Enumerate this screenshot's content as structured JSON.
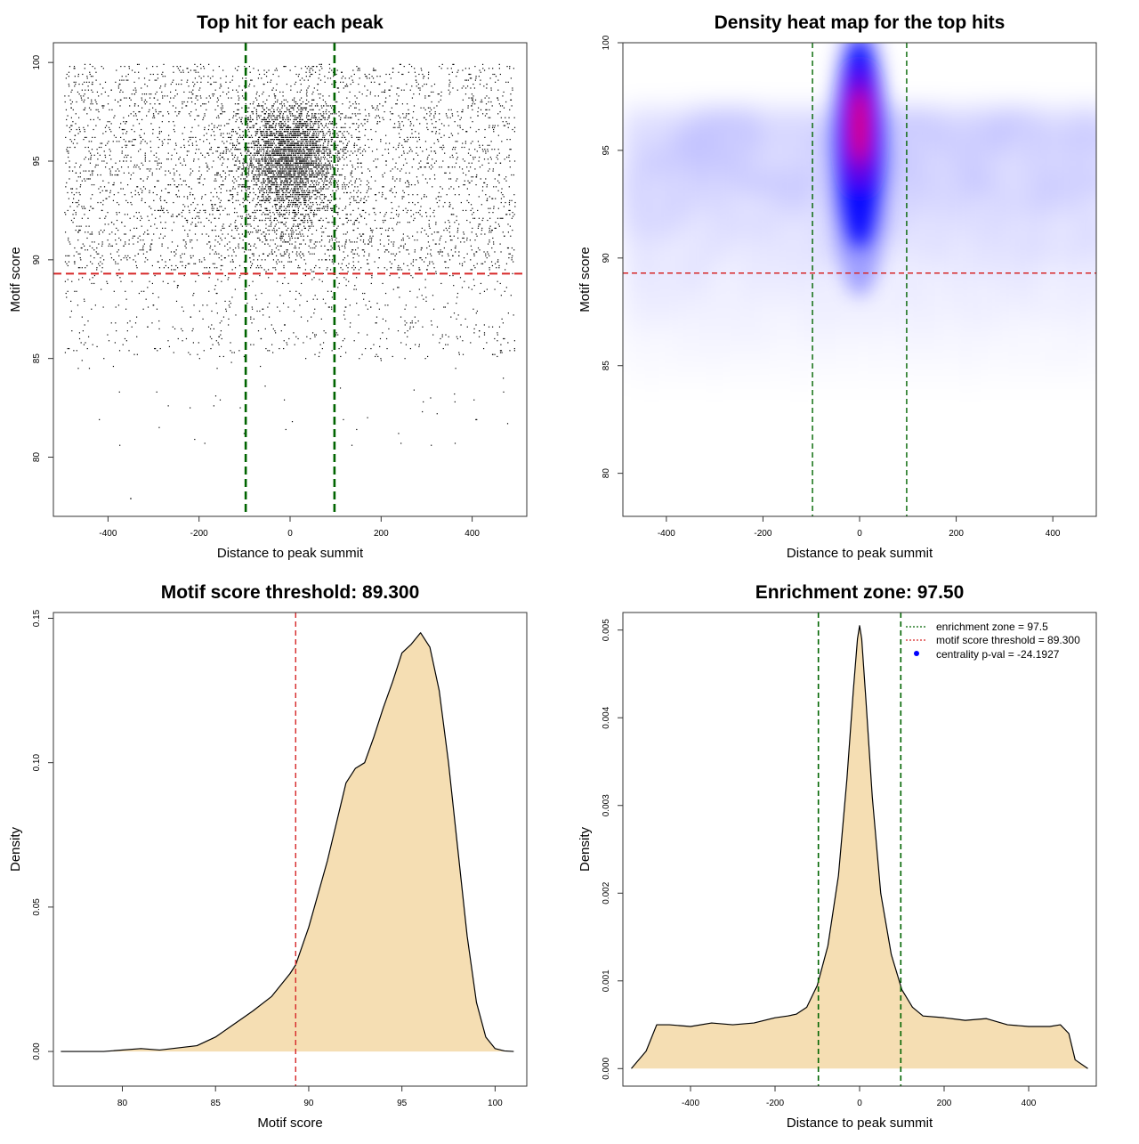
{
  "chart_data": [
    {
      "type": "scatter",
      "title": "Top hit for each peak",
      "xlabel": "Distance to peak summit",
      "ylabel": "Motif score",
      "xlim": [
        -520,
        520
      ],
      "ylim": [
        77,
        101
      ],
      "x_ticks": [
        -400,
        -200,
        0,
        200,
        400
      ],
      "y_ticks": [
        80,
        85,
        90,
        95,
        100
      ],
      "x_tick_labels": [
        "-400",
        "-200",
        "0",
        "200",
        "400"
      ],
      "y_tick_labels": [
        "80",
        "85",
        "90",
        "95",
        "100"
      ],
      "threshold_y": 89.3,
      "zone_x": [
        -97.5,
        97.5
      ],
      "point_distribution": {
        "n_points": 7600,
        "central_fraction": 0.42,
        "center_x": 0,
        "center_sd_x": 55,
        "x_range": [
          -495,
          495
        ],
        "score_peak": 96,
        "score_min": 77.9,
        "score_max": 100
      },
      "colors": {
        "points": "#000000",
        "threshold": "#d62728",
        "zone": "#006400"
      },
      "grid": false
    },
    {
      "type": "heatmap",
      "title": "Density heat map for the top hits",
      "xlabel": "Distance to peak summit",
      "ylabel": "Motif score",
      "xlim": [
        -490,
        490
      ],
      "ylim": [
        78,
        100
      ],
      "x_ticks": [
        -400,
        -200,
        0,
        200,
        400
      ],
      "y_ticks": [
        80,
        85,
        90,
        95,
        100
      ],
      "x_tick_labels": [
        "-400",
        "-200",
        "0",
        "200",
        "400"
      ],
      "y_tick_labels": [
        "80",
        "85",
        "90",
        "95",
        "100"
      ],
      "threshold_y": 89.3,
      "zone_x": [
        -97.5,
        97.5
      ],
      "hotspot": {
        "x": 0,
        "y": 96,
        "sd_x": 30,
        "sd_y": 2.2
      },
      "colors": {
        "low": "#ffffff",
        "mid": "#0000ff",
        "high": "#ff0000",
        "threshold": "#d62728",
        "zone": "#006400"
      },
      "grid": false
    },
    {
      "type": "area",
      "title": "Motif score threshold: 89.300",
      "xlabel": "Motif score",
      "ylabel": "Density",
      "xlim": [
        76.3,
        101.7
      ],
      "ylim": [
        -0.012,
        0.152
      ],
      "x_ticks": [
        80,
        85,
        90,
        95,
        100
      ],
      "y_ticks": [
        0.0,
        0.05,
        0.1,
        0.15
      ],
      "x_tick_labels": [
        "80",
        "85",
        "90",
        "95",
        "100"
      ],
      "y_tick_labels": [
        "0.00",
        "0.05",
        "0.10",
        "0.15"
      ],
      "x": [
        76.7,
        79,
        81,
        82,
        84,
        85,
        86,
        87,
        88,
        89,
        89.3,
        90,
        91,
        92,
        92.5,
        93,
        93.5,
        94,
        94.5,
        95,
        95.5,
        96,
        96.5,
        97,
        97.5,
        98,
        98.5,
        99,
        99.5,
        100,
        100.5,
        101
      ],
      "y": [
        0.0,
        0.0,
        0.001,
        0.0005,
        0.002,
        0.005,
        0.0095,
        0.014,
        0.019,
        0.027,
        0.03,
        0.043,
        0.066,
        0.093,
        0.098,
        0.1,
        0.109,
        0.119,
        0.128,
        0.138,
        0.141,
        0.145,
        0.14,
        0.125,
        0.1,
        0.07,
        0.04,
        0.017,
        0.005,
        0.001,
        0.0002,
        0.0
      ],
      "threshold_x": 89.3,
      "colors": {
        "fill": "#f5deb3",
        "line": "#000000",
        "threshold": "#d62728"
      },
      "grid": false
    },
    {
      "type": "area",
      "title": "Enrichment zone: 97.50",
      "xlabel": "Distance to peak summit",
      "ylabel": "Density",
      "xlim": [
        -560,
        560
      ],
      "ylim": [
        -0.0002,
        0.0052
      ],
      "x_ticks": [
        -400,
        -200,
        0,
        200,
        400
      ],
      "y_ticks": [
        0.0,
        0.001,
        0.002,
        0.003,
        0.004,
        0.005
      ],
      "x_tick_labels": [
        "-400",
        "-200",
        "0",
        "200",
        "400"
      ],
      "y_tick_labels": [
        "0.000",
        "0.001",
        "0.002",
        "0.003",
        "0.004",
        "0.005"
      ],
      "x": [
        -540,
        -505,
        -480,
        -450,
        -400,
        -350,
        -300,
        -250,
        -200,
        -170,
        -150,
        -125,
        -100,
        -75,
        -50,
        -30,
        -15,
        -5,
        0,
        5,
        15,
        30,
        50,
        75,
        100,
        125,
        150,
        200,
        250,
        300,
        350,
        400,
        450,
        475,
        495,
        510,
        540
      ],
      "y": [
        0.0,
        0.0002,
        0.0005,
        0.0005,
        0.00048,
        0.00052,
        0.0005,
        0.00052,
        0.00058,
        0.0006,
        0.00062,
        0.0007,
        0.00095,
        0.0014,
        0.0022,
        0.0033,
        0.0043,
        0.0049,
        0.00505,
        0.0049,
        0.0042,
        0.0031,
        0.002,
        0.0013,
        0.0009,
        0.0007,
        0.0006,
        0.00058,
        0.00055,
        0.00057,
        0.0005,
        0.00048,
        0.00048,
        0.0005,
        0.0004,
        0.0001,
        0.0
      ],
      "zone_x": [
        -97.5,
        97.5
      ],
      "legend": {
        "placement": "top-right",
        "items": [
          {
            "label": "enrichment zone = 97.5",
            "color": "#006400",
            "style": "dotted-line"
          },
          {
            "label": "motif score threshold = 89.300",
            "color": "#d62728",
            "style": "dotted-line"
          },
          {
            "label": "centrality p-val = -24.1927",
            "color": "#0000ff",
            "style": "point"
          }
        ]
      },
      "colors": {
        "fill": "#f5deb3",
        "line": "#000000",
        "zone": "#006400"
      },
      "grid": false
    }
  ]
}
